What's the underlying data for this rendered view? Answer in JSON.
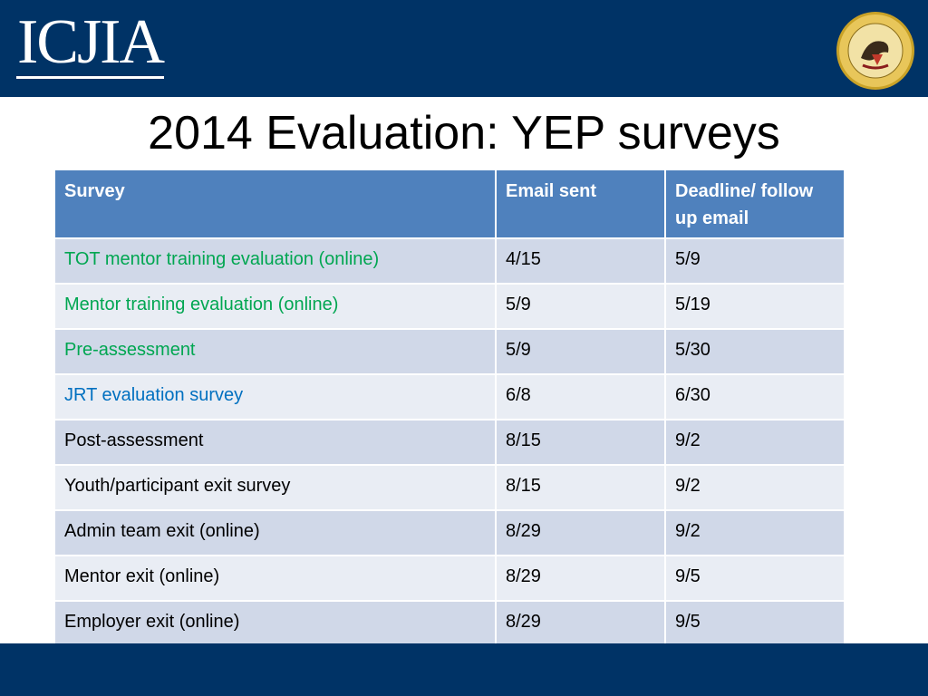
{
  "header": {
    "logo_text": "ICJIA",
    "seal_icon": "illinois-state-seal-icon",
    "brand_color": "#003366"
  },
  "title": "2014 Evaluation: YEP surveys",
  "table": {
    "columns": [
      "Survey",
      "Email sent",
      "Deadline/ follow up email"
    ],
    "header_color": "#4f81bd",
    "row_colors": [
      "#d0d8e8",
      "#e9edf4"
    ],
    "survey_text_colors": {
      "green": "#00a651",
      "blue": "#0070c0",
      "default": "#000000"
    },
    "rows": [
      {
        "survey": "TOT mentor training evaluation (online)",
        "email_sent": "4/15",
        "deadline": "5/9",
        "survey_color": "green"
      },
      {
        "survey": "Mentor training evaluation (online)",
        "email_sent": "5/9",
        "deadline": "5/19",
        "survey_color": "green"
      },
      {
        "survey": "Pre-assessment",
        "email_sent": "5/9",
        "deadline": "5/30",
        "survey_color": "green"
      },
      {
        "survey": "JRT evaluation survey",
        "email_sent": "6/8",
        "deadline": "6/30",
        "survey_color": "blue"
      },
      {
        "survey": "Post-assessment",
        "email_sent": "8/15",
        "deadline": "9/2",
        "survey_color": "default"
      },
      {
        "survey": "Youth/participant exit survey",
        "email_sent": "8/15",
        "deadline": "9/2",
        "survey_color": "default"
      },
      {
        "survey": "Admin team exit (online)",
        "email_sent": "8/29",
        "deadline": "9/2",
        "survey_color": "default"
      },
      {
        "survey": "Mentor exit (online)",
        "email_sent": "8/29",
        "deadline": "9/5",
        "survey_color": "default"
      },
      {
        "survey": "Employer exit (online)",
        "email_sent": "8/29",
        "deadline": "9/5",
        "survey_color": "default"
      }
    ]
  }
}
